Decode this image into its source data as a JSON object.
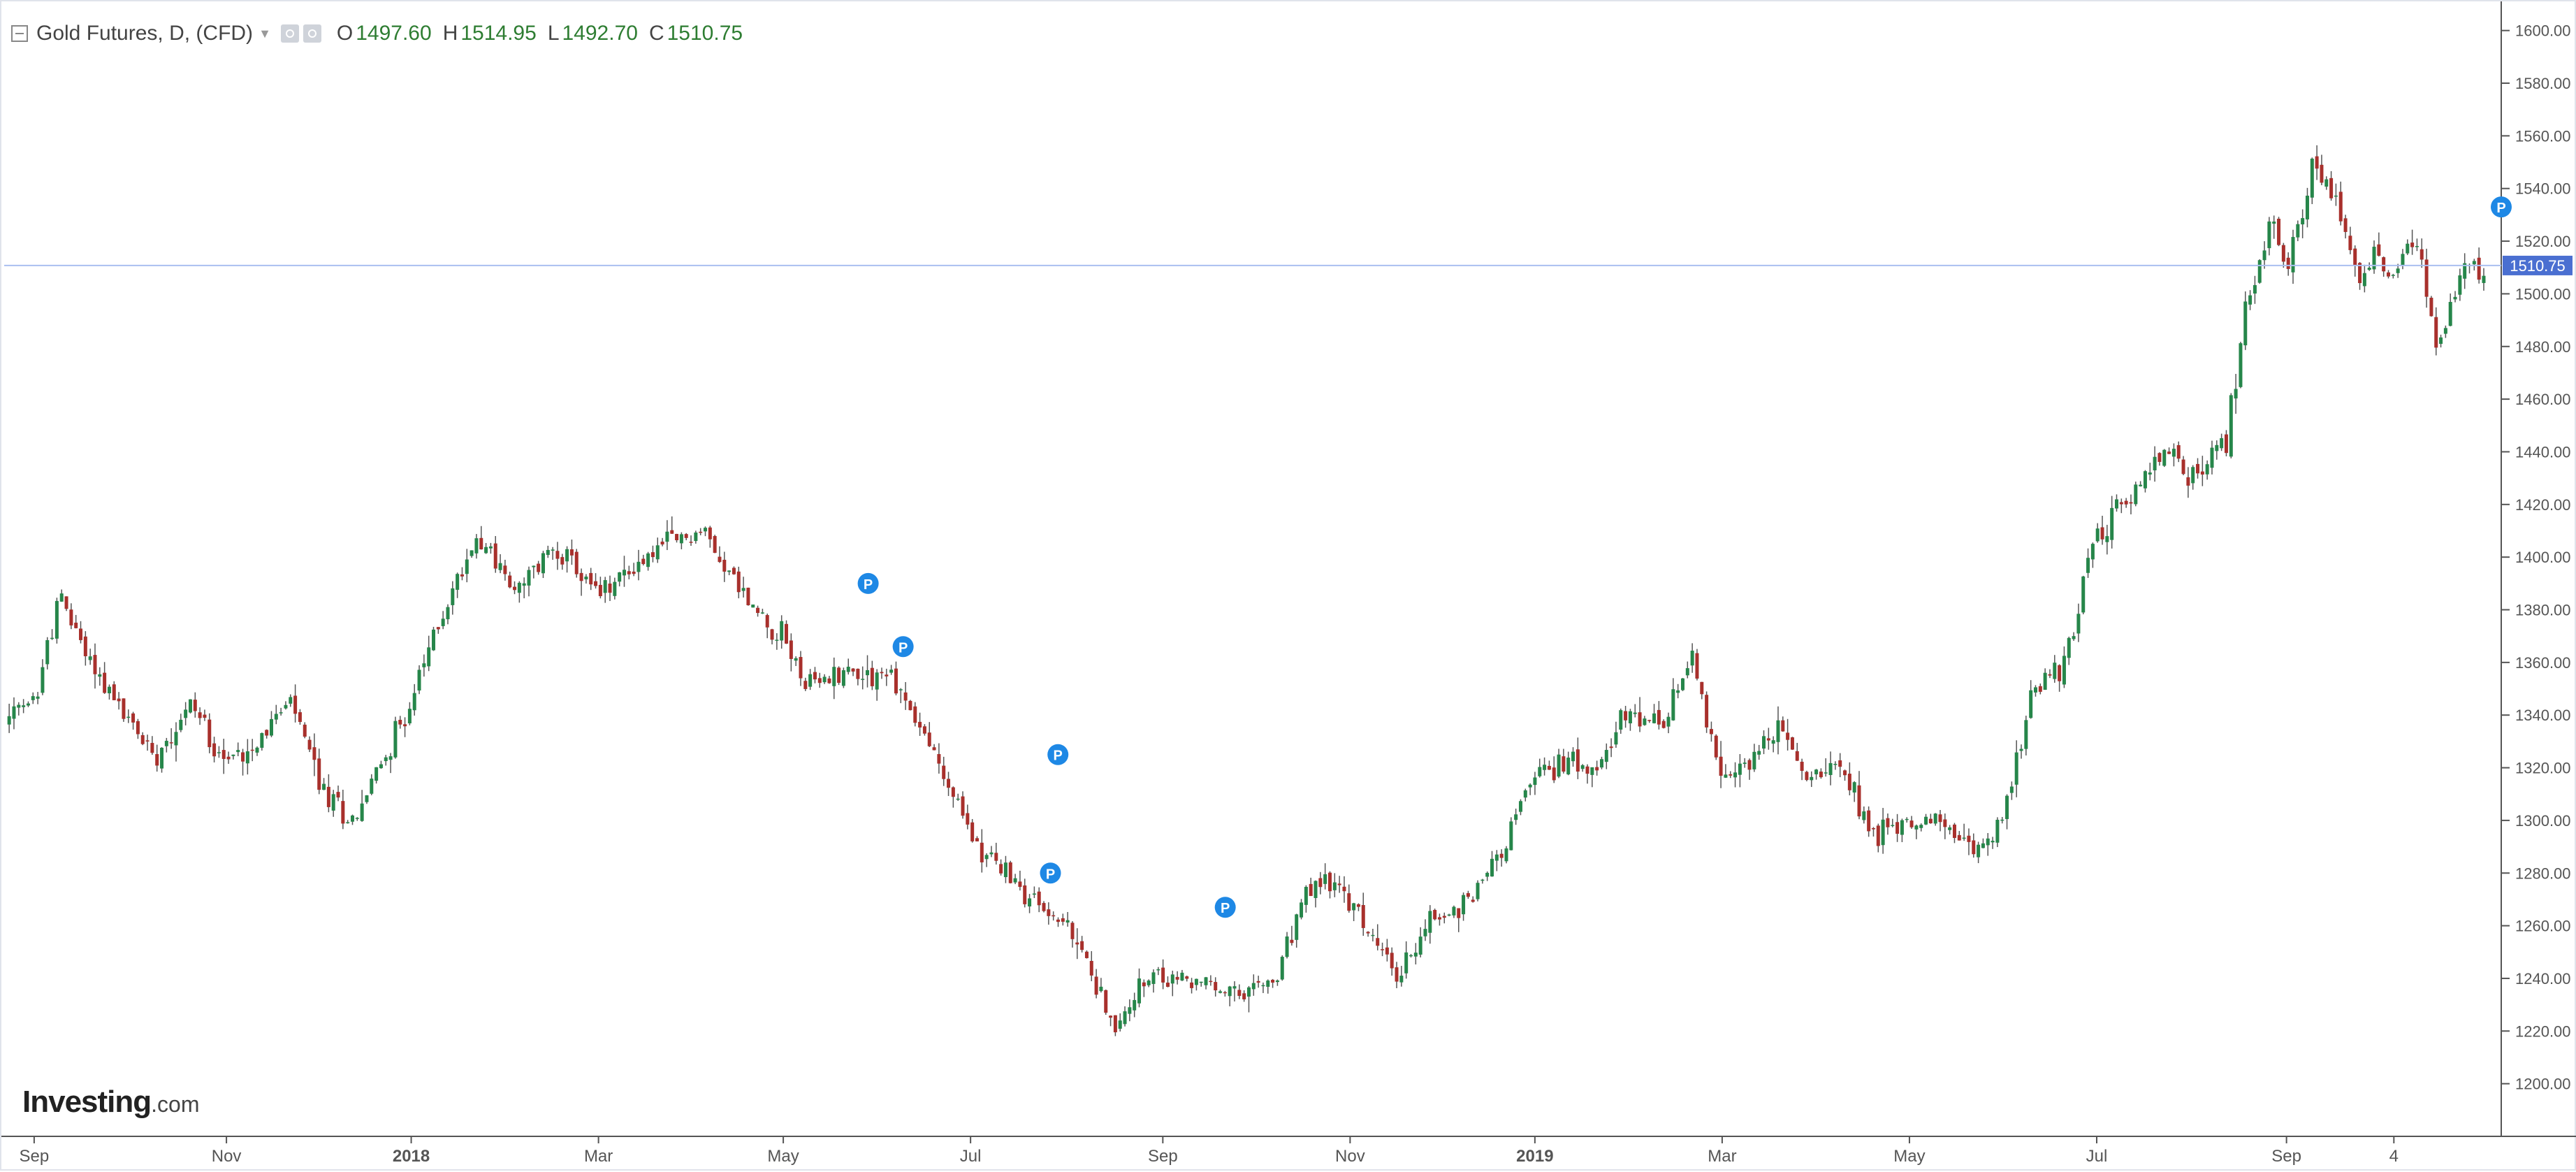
{
  "legend": {
    "title": "Gold Futures, D, (CFD)",
    "o_label": "O",
    "o_value": "1497.60",
    "h_label": "H",
    "h_value": "1514.95",
    "l_label": "L",
    "l_value": "1492.70",
    "c_label": "C",
    "c_value": "1510.75",
    "ohlc_color": "#2e7d32"
  },
  "logo": {
    "brand": "Investing",
    "suffix": ".com"
  },
  "colors": {
    "up": "#26864a",
    "down": "#a8302c",
    "wick": "#555555",
    "price_line": "#aabff0",
    "price_tag": "#4a6fd1",
    "marker": "#1e88e5",
    "axis_text": "#555555"
  },
  "chart_data": {
    "type": "candlestick",
    "instrument": "Gold Futures, D, (CFD)",
    "last_price": 1510.75,
    "last_price_label": "1510.75",
    "ylim": [
      1180,
      1610
    ],
    "y_ticks": [
      "1200.00",
      "1220.00",
      "1240.00",
      "1260.00",
      "1280.00",
      "1300.00",
      "1320.00",
      "1340.00",
      "1360.00",
      "1380.00",
      "1400.00",
      "1420.00",
      "1440.00",
      "1460.00",
      "1480.00",
      "1500.00",
      "1520.00",
      "1540.00",
      "1560.00",
      "1580.00",
      "1600.00"
    ],
    "x_ticks": [
      {
        "label": "Sep",
        "t": 0.012,
        "bold": false
      },
      {
        "label": "Nov",
        "t": 0.089,
        "bold": false
      },
      {
        "label": "2018",
        "t": 0.163,
        "bold": true
      },
      {
        "label": "Mar",
        "t": 0.238,
        "bold": false
      },
      {
        "label": "May",
        "t": 0.312,
        "bold": false
      },
      {
        "label": "Jul",
        "t": 0.387,
        "bold": false
      },
      {
        "label": "Sep",
        "t": 0.464,
        "bold": false
      },
      {
        "label": "Nov",
        "t": 0.539,
        "bold": false
      },
      {
        "label": "2019",
        "t": 0.613,
        "bold": true
      },
      {
        "label": "Mar",
        "t": 0.688,
        "bold": false
      },
      {
        "label": "May",
        "t": 0.763,
        "bold": false
      },
      {
        "label": "Jul",
        "t": 0.838,
        "bold": false
      },
      {
        "label": "Sep",
        "t": 0.914,
        "bold": false
      },
      {
        "label": "4",
        "t": 0.957,
        "bold": false
      }
    ],
    "trend": [
      [
        0.0,
        1337
      ],
      [
        0.012,
        1345
      ],
      [
        0.022,
        1385
      ],
      [
        0.035,
        1360
      ],
      [
        0.048,
        1340
      ],
      [
        0.06,
        1325
      ],
      [
        0.075,
        1345
      ],
      [
        0.089,
        1322
      ],
      [
        0.1,
        1330
      ],
      [
        0.115,
        1345
      ],
      [
        0.128,
        1310
      ],
      [
        0.14,
        1300
      ],
      [
        0.15,
        1320
      ],
      [
        0.163,
        1345
      ],
      [
        0.172,
        1370
      ],
      [
        0.19,
        1410
      ],
      [
        0.205,
        1385
      ],
      [
        0.22,
        1405
      ],
      [
        0.238,
        1385
      ],
      [
        0.25,
        1395
      ],
      [
        0.265,
        1405
      ],
      [
        0.28,
        1410
      ],
      [
        0.3,
        1380
      ],
      [
        0.312,
        1370
      ],
      [
        0.322,
        1350
      ],
      [
        0.335,
        1357
      ],
      [
        0.355,
        1355
      ],
      [
        0.37,
        1330
      ],
      [
        0.387,
        1295
      ],
      [
        0.4,
        1280
      ],
      [
        0.412,
        1270
      ],
      [
        0.425,
        1260
      ],
      [
        0.437,
        1240
      ],
      [
        0.445,
        1218
      ],
      [
        0.452,
        1235
      ],
      [
        0.464,
        1240
      ],
      [
        0.48,
        1238
      ],
      [
        0.495,
        1232
      ],
      [
        0.51,
        1240
      ],
      [
        0.52,
        1270
      ],
      [
        0.53,
        1278
      ],
      [
        0.545,
        1260
      ],
      [
        0.558,
        1240
      ],
      [
        0.57,
        1262
      ],
      [
        0.58,
        1265
      ],
      [
        0.59,
        1275
      ],
      [
        0.6,
        1290
      ],
      [
        0.613,
        1318
      ],
      [
        0.625,
        1322
      ],
      [
        0.64,
        1325
      ],
      [
        0.65,
        1340
      ],
      [
        0.665,
        1335
      ],
      [
        0.676,
        1365
      ],
      [
        0.688,
        1312
      ],
      [
        0.7,
        1325
      ],
      [
        0.712,
        1335
      ],
      [
        0.722,
        1315
      ],
      [
        0.735,
        1325
      ],
      [
        0.748,
        1295
      ],
      [
        0.763,
        1300
      ],
      [
        0.775,
        1300
      ],
      [
        0.788,
        1287
      ],
      [
        0.8,
        1300
      ],
      [
        0.813,
        1350
      ],
      [
        0.825,
        1360
      ],
      [
        0.838,
        1410
      ],
      [
        0.85,
        1420
      ],
      [
        0.865,
        1440
      ],
      [
        0.878,
        1430
      ],
      [
        0.89,
        1445
      ],
      [
        0.898,
        1495
      ],
      [
        0.908,
        1528
      ],
      [
        0.914,
        1510
      ],
      [
        0.925,
        1550
      ],
      [
        0.935,
        1530
      ],
      [
        0.942,
        1505
      ],
      [
        0.95,
        1515
      ],
      [
        0.957,
        1505
      ],
      [
        0.965,
        1525
      ],
      [
        0.975,
        1478
      ],
      [
        0.985,
        1510
      ],
      [
        0.993,
        1510
      ]
    ],
    "markers": [
      {
        "label": "P",
        "t": 0.346,
        "price": 1390
      },
      {
        "label": "P",
        "t": 0.36,
        "price": 1366
      },
      {
        "label": "P",
        "t": 0.422,
        "price": 1325
      },
      {
        "label": "P",
        "t": 0.419,
        "price": 1280
      },
      {
        "label": "P",
        "t": 0.489,
        "price": 1267
      },
      {
        "label": "P",
        "t": 1.0,
        "price": 1533
      }
    ]
  }
}
